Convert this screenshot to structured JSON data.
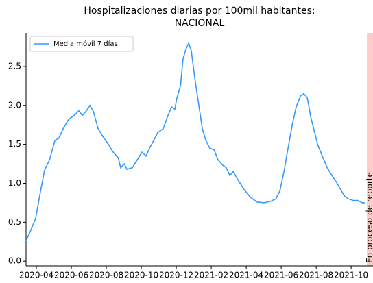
{
  "chart_data": {
    "type": "line",
    "title": [
      "Hospitalizaciones diarias por 100mil habitantes:",
      "NACIONAL"
    ],
    "annotation": "En proceso de reporte",
    "legend": "upper left",
    "series": [
      {
        "name": "Media móvil 7 días",
        "color": "#3399ff",
        "x": [
          3.41,
          3.69,
          3.96,
          4.2,
          4.47,
          4.75,
          5.06,
          5.29,
          5.53,
          5.84,
          6.16,
          6.43,
          6.63,
          6.86,
          7.06,
          7.25,
          7.53,
          7.8,
          8.12,
          8.39,
          8.67,
          8.82,
          9.02,
          9.18,
          9.49,
          9.76,
          10.04,
          10.27,
          10.47,
          10.71,
          10.94,
          11.25,
          11.49,
          11.73,
          11.92,
          12.04,
          12.24,
          12.39,
          12.55,
          12.71,
          12.86,
          13.06,
          13.29,
          13.49,
          13.69,
          13.92,
          14.16,
          14.39,
          14.67,
          14.86,
          15.06,
          15.25,
          15.57,
          15.88,
          16.24,
          16.63,
          17.02,
          17.41,
          17.69,
          17.92,
          18.16,
          18.39,
          18.63,
          18.86,
          19.1,
          19.29,
          19.49,
          19.69,
          19.88,
          20.08,
          20.35,
          20.63,
          20.9,
          21.14,
          21.37,
          21.61,
          21.84,
          22.12,
          22.39,
          22.63,
          22.78
        ],
        "values": [
          0.26,
          0.4,
          0.55,
          0.85,
          1.17,
          1.3,
          1.55,
          1.58,
          1.7,
          1.82,
          1.87,
          1.93,
          1.87,
          1.93,
          2.0,
          1.93,
          1.7,
          1.6,
          1.5,
          1.4,
          1.33,
          1.2,
          1.25,
          1.18,
          1.2,
          1.3,
          1.4,
          1.35,
          1.45,
          1.55,
          1.65,
          1.7,
          1.85,
          1.98,
          1.95,
          2.1,
          2.25,
          2.6,
          2.72,
          2.8,
          2.7,
          2.35,
          2.0,
          1.7,
          1.55,
          1.45,
          1.43,
          1.3,
          1.23,
          1.2,
          1.1,
          1.15,
          1.03,
          0.92,
          0.82,
          0.76,
          0.75,
          0.77,
          0.8,
          0.9,
          1.15,
          1.45,
          1.75,
          1.98,
          2.12,
          2.15,
          2.1,
          1.85,
          1.68,
          1.5,
          1.35,
          1.2,
          1.1,
          1.02,
          0.93,
          0.84,
          0.8,
          0.78,
          0.78,
          0.75,
          0.75
        ]
      }
    ],
    "shaded_span": {
      "x": [
        22.9,
        23.25
      ],
      "color": "#ffcccc"
    },
    "xlim": [
      3.41,
      23.25
    ],
    "xticks": [
      {
        "value": 4,
        "label": "2020-04"
      },
      {
        "value": 6,
        "label": "2020-06"
      },
      {
        "value": 8,
        "label": "2020-08"
      },
      {
        "value": 10,
        "label": "2020-10"
      },
      {
        "value": 12,
        "label": "2020-12"
      },
      {
        "value": 14,
        "label": "2021-02"
      },
      {
        "value": 16,
        "label": "2021-04"
      },
      {
        "value": 18,
        "label": "2021-06"
      },
      {
        "value": 20,
        "label": "2021-08"
      },
      {
        "value": 22,
        "label": "2021-10"
      }
    ],
    "ylim": [
      -0.06,
      2.93
    ],
    "yticks": [
      {
        "value": 0,
        "label": "0.0"
      },
      0.5,
      {
        "value": 1,
        "label": "1.0"
      },
      1.5,
      {
        "value": 2,
        "label": "2.0"
      },
      2.5
    ]
  }
}
